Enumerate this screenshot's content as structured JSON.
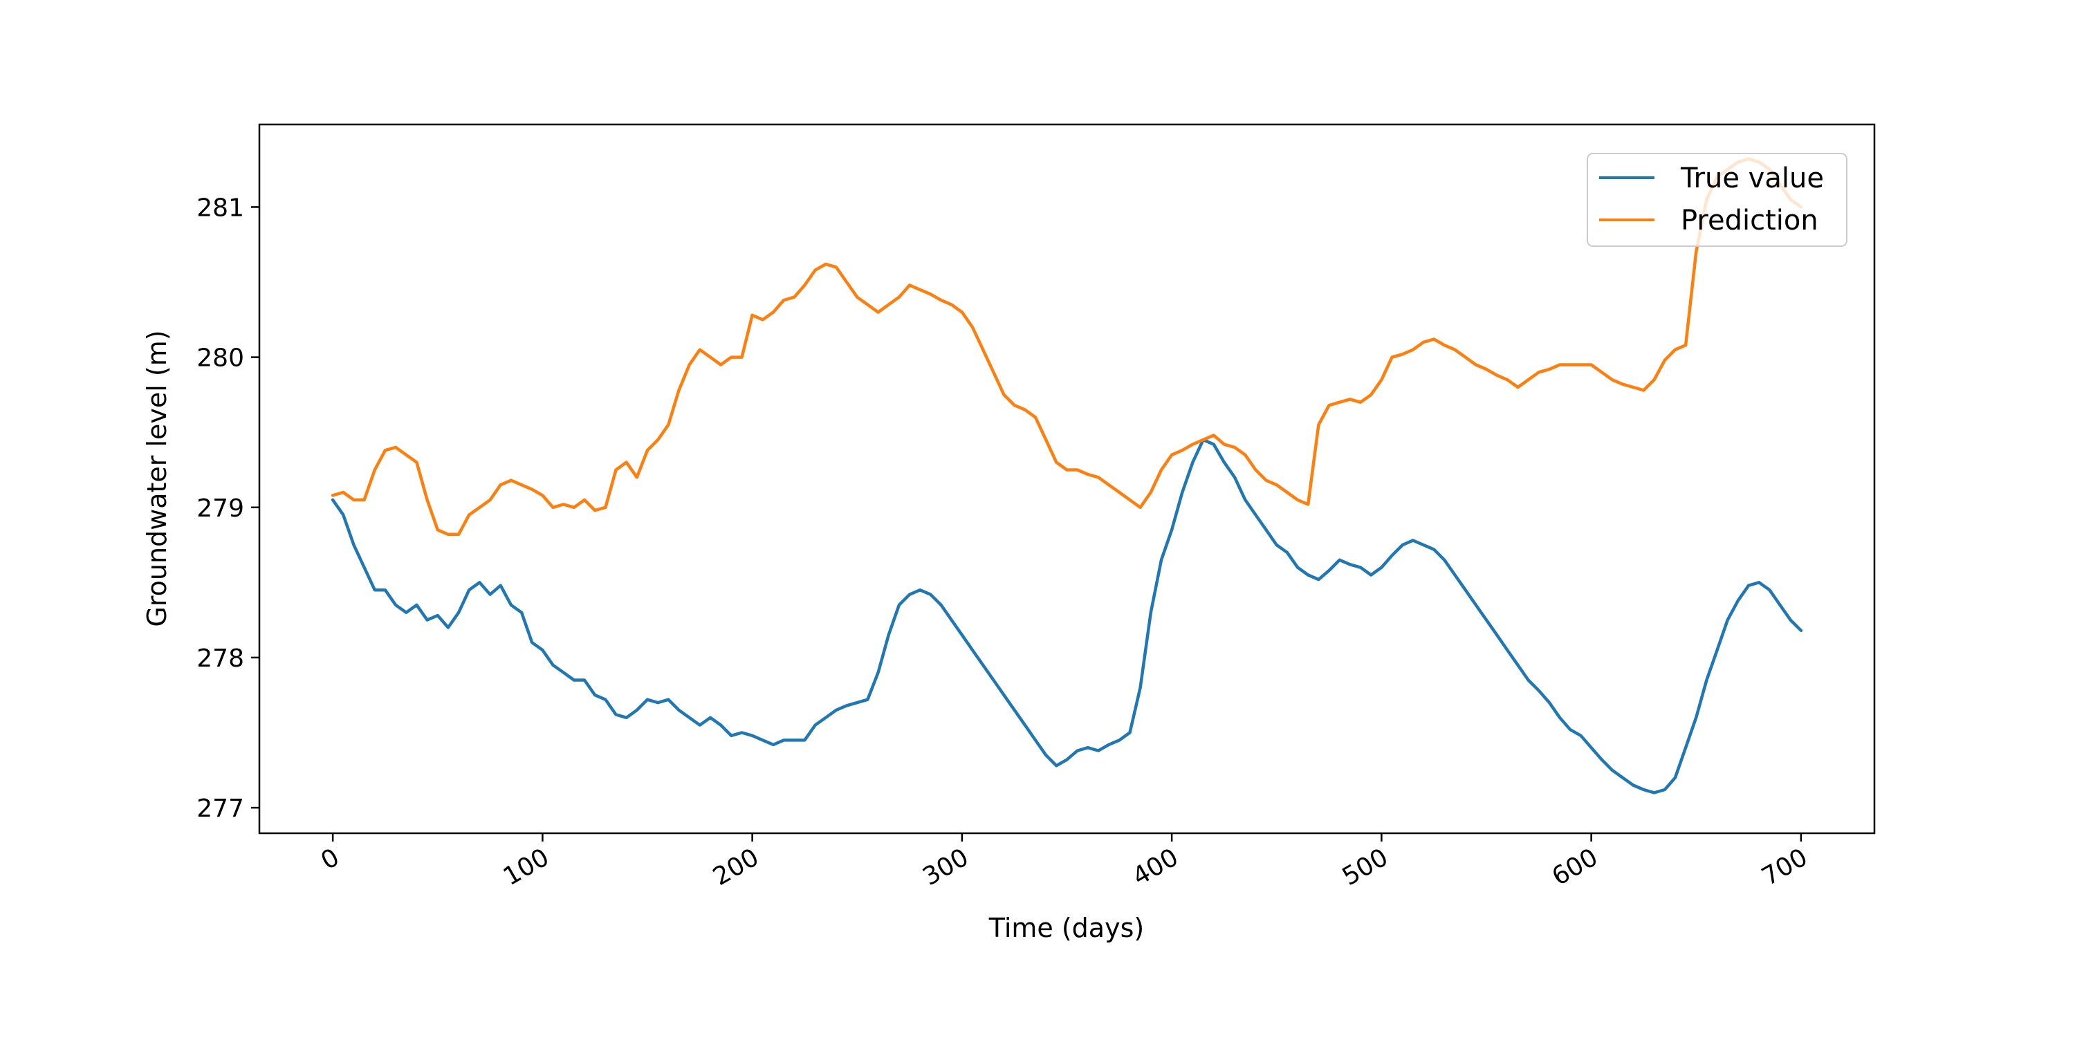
{
  "chart_data": {
    "type": "line",
    "title": "",
    "xlabel": "Time (days)",
    "ylabel": "Groundwater level (m)",
    "xlim": [
      -35,
      735
    ],
    "ylim": [
      276.83,
      281.55
    ],
    "x_ticks": [
      0,
      100,
      200,
      300,
      400,
      500,
      600,
      700
    ],
    "x_tick_labels": [
      "0",
      "100",
      "200",
      "300",
      "400",
      "500",
      "600",
      "700"
    ],
    "y_ticks": [
      277,
      278,
      279,
      280,
      281
    ],
    "y_tick_labels": [
      "277",
      "278",
      "279",
      "280",
      "281"
    ],
    "grid": false,
    "legend_position": "upper right",
    "series": [
      {
        "name": "True value",
        "color": "#1f77b4",
        "points": [
          [
            0,
            279.05
          ],
          [
            5,
            278.95
          ],
          [
            10,
            278.75
          ],
          [
            15,
            278.6
          ],
          [
            20,
            278.45
          ],
          [
            25,
            278.45
          ],
          [
            30,
            278.35
          ],
          [
            35,
            278.3
          ],
          [
            40,
            278.35
          ],
          [
            45,
            278.25
          ],
          [
            50,
            278.28
          ],
          [
            55,
            278.2
          ],
          [
            60,
            278.3
          ],
          [
            65,
            278.45
          ],
          [
            70,
            278.5
          ],
          [
            75,
            278.42
          ],
          [
            80,
            278.48
          ],
          [
            85,
            278.35
          ],
          [
            90,
            278.3
          ],
          [
            95,
            278.1
          ],
          [
            100,
            278.05
          ],
          [
            105,
            277.95
          ],
          [
            110,
            277.9
          ],
          [
            115,
            277.85
          ],
          [
            120,
            277.85
          ],
          [
            125,
            277.75
          ],
          [
            130,
            277.72
          ],
          [
            135,
            277.62
          ],
          [
            140,
            277.6
          ],
          [
            145,
            277.65
          ],
          [
            150,
            277.72
          ],
          [
            155,
            277.7
          ],
          [
            160,
            277.72
          ],
          [
            165,
            277.65
          ],
          [
            170,
            277.6
          ],
          [
            175,
            277.55
          ],
          [
            180,
            277.6
          ],
          [
            185,
            277.55
          ],
          [
            190,
            277.48
          ],
          [
            195,
            277.5
          ],
          [
            200,
            277.48
          ],
          [
            205,
            277.45
          ],
          [
            210,
            277.42
          ],
          [
            215,
            277.45
          ],
          [
            220,
            277.45
          ],
          [
            225,
            277.45
          ],
          [
            230,
            277.55
          ],
          [
            235,
            277.6
          ],
          [
            240,
            277.65
          ],
          [
            245,
            277.68
          ],
          [
            250,
            277.7
          ],
          [
            255,
            277.72
          ],
          [
            260,
            277.9
          ],
          [
            265,
            278.15
          ],
          [
            270,
            278.35
          ],
          [
            275,
            278.42
          ],
          [
            280,
            278.45
          ],
          [
            285,
            278.42
          ],
          [
            290,
            278.35
          ],
          [
            295,
            278.25
          ],
          [
            300,
            278.15
          ],
          [
            305,
            278.05
          ],
          [
            310,
            277.95
          ],
          [
            315,
            277.85
          ],
          [
            320,
            277.75
          ],
          [
            325,
            277.65
          ],
          [
            330,
            277.55
          ],
          [
            335,
            277.45
          ],
          [
            340,
            277.35
          ],
          [
            345,
            277.28
          ],
          [
            350,
            277.32
          ],
          [
            355,
            277.38
          ],
          [
            360,
            277.4
          ],
          [
            365,
            277.38
          ],
          [
            370,
            277.42
          ],
          [
            375,
            277.45
          ],
          [
            380,
            277.5
          ],
          [
            385,
            277.8
          ],
          [
            390,
            278.3
          ],
          [
            395,
            278.65
          ],
          [
            400,
            278.85
          ],
          [
            405,
            279.1
          ],
          [
            410,
            279.3
          ],
          [
            415,
            279.45
          ],
          [
            420,
            279.42
          ],
          [
            425,
            279.3
          ],
          [
            430,
            279.2
          ],
          [
            435,
            279.05
          ],
          [
            440,
            278.95
          ],
          [
            445,
            278.85
          ],
          [
            450,
            278.75
          ],
          [
            455,
            278.7
          ],
          [
            460,
            278.6
          ],
          [
            465,
            278.55
          ],
          [
            470,
            278.52
          ],
          [
            475,
            278.58
          ],
          [
            480,
            278.65
          ],
          [
            485,
            278.62
          ],
          [
            490,
            278.6
          ],
          [
            495,
            278.55
          ],
          [
            500,
            278.6
          ],
          [
            505,
            278.68
          ],
          [
            510,
            278.75
          ],
          [
            515,
            278.78
          ],
          [
            520,
            278.75
          ],
          [
            525,
            278.72
          ],
          [
            530,
            278.65
          ],
          [
            535,
            278.55
          ],
          [
            540,
            278.45
          ],
          [
            545,
            278.35
          ],
          [
            550,
            278.25
          ],
          [
            555,
            278.15
          ],
          [
            560,
            278.05
          ],
          [
            565,
            277.95
          ],
          [
            570,
            277.85
          ],
          [
            575,
            277.78
          ],
          [
            580,
            277.7
          ],
          [
            585,
            277.6
          ],
          [
            590,
            277.52
          ],
          [
            595,
            277.48
          ],
          [
            600,
            277.4
          ],
          [
            605,
            277.32
          ],
          [
            610,
            277.25
          ],
          [
            615,
            277.2
          ],
          [
            620,
            277.15
          ],
          [
            625,
            277.12
          ],
          [
            630,
            277.1
          ],
          [
            635,
            277.12
          ],
          [
            640,
            277.2
          ],
          [
            645,
            277.4
          ],
          [
            650,
            277.6
          ],
          [
            655,
            277.85
          ],
          [
            660,
            278.05
          ],
          [
            665,
            278.25
          ],
          [
            670,
            278.38
          ],
          [
            675,
            278.48
          ],
          [
            680,
            278.5
          ],
          [
            685,
            278.45
          ],
          [
            690,
            278.35
          ],
          [
            695,
            278.25
          ],
          [
            700,
            278.18
          ]
        ]
      },
      {
        "name": "Prediction",
        "color": "#ff7f0e",
        "points": [
          [
            0,
            279.08
          ],
          [
            5,
            279.1
          ],
          [
            10,
            279.05
          ],
          [
            15,
            279.05
          ],
          [
            20,
            279.25
          ],
          [
            25,
            279.38
          ],
          [
            30,
            279.4
          ],
          [
            35,
            279.35
          ],
          [
            40,
            279.3
          ],
          [
            45,
            279.05
          ],
          [
            50,
            278.85
          ],
          [
            55,
            278.82
          ],
          [
            60,
            278.82
          ],
          [
            65,
            278.95
          ],
          [
            70,
            279.0
          ],
          [
            75,
            279.05
          ],
          [
            80,
            279.15
          ],
          [
            85,
            279.18
          ],
          [
            90,
            279.15
          ],
          [
            95,
            279.12
          ],
          [
            100,
            279.08
          ],
          [
            105,
            279.0
          ],
          [
            110,
            279.02
          ],
          [
            115,
            279.0
          ],
          [
            120,
            279.05
          ],
          [
            125,
            278.98
          ],
          [
            130,
            279.0
          ],
          [
            135,
            279.25
          ],
          [
            140,
            279.3
          ],
          [
            145,
            279.2
          ],
          [
            150,
            279.38
          ],
          [
            155,
            279.45
          ],
          [
            160,
            279.55
          ],
          [
            165,
            279.78
          ],
          [
            170,
            279.95
          ],
          [
            175,
            280.05
          ],
          [
            180,
            280.0
          ],
          [
            185,
            279.95
          ],
          [
            190,
            280.0
          ],
          [
            195,
            280.0
          ],
          [
            200,
            280.28
          ],
          [
            205,
            280.25
          ],
          [
            210,
            280.3
          ],
          [
            215,
            280.38
          ],
          [
            220,
            280.4
          ],
          [
            225,
            280.48
          ],
          [
            230,
            280.58
          ],
          [
            235,
            280.62
          ],
          [
            240,
            280.6
          ],
          [
            245,
            280.5
          ],
          [
            250,
            280.4
          ],
          [
            255,
            280.35
          ],
          [
            260,
            280.3
          ],
          [
            265,
            280.35
          ],
          [
            270,
            280.4
          ],
          [
            275,
            280.48
          ],
          [
            280,
            280.45
          ],
          [
            285,
            280.42
          ],
          [
            290,
            280.38
          ],
          [
            295,
            280.35
          ],
          [
            300,
            280.3
          ],
          [
            305,
            280.2
          ],
          [
            310,
            280.05
          ],
          [
            315,
            279.9
          ],
          [
            320,
            279.75
          ],
          [
            325,
            279.68
          ],
          [
            330,
            279.65
          ],
          [
            335,
            279.6
          ],
          [
            340,
            279.45
          ],
          [
            345,
            279.3
          ],
          [
            350,
            279.25
          ],
          [
            355,
            279.25
          ],
          [
            360,
            279.22
          ],
          [
            365,
            279.2
          ],
          [
            370,
            279.15
          ],
          [
            375,
            279.1
          ],
          [
            380,
            279.05
          ],
          [
            385,
            279.0
          ],
          [
            390,
            279.1
          ],
          [
            395,
            279.25
          ],
          [
            400,
            279.35
          ],
          [
            405,
            279.38
          ],
          [
            410,
            279.42
          ],
          [
            415,
            279.45
          ],
          [
            420,
            279.48
          ],
          [
            425,
            279.42
          ],
          [
            430,
            279.4
          ],
          [
            435,
            279.35
          ],
          [
            440,
            279.25
          ],
          [
            445,
            279.18
          ],
          [
            450,
            279.15
          ],
          [
            455,
            279.1
          ],
          [
            460,
            279.05
          ],
          [
            465,
            279.02
          ],
          [
            470,
            279.55
          ],
          [
            475,
            279.68
          ],
          [
            480,
            279.7
          ],
          [
            485,
            279.72
          ],
          [
            490,
            279.7
          ],
          [
            495,
            279.75
          ],
          [
            500,
            279.85
          ],
          [
            505,
            280.0
          ],
          [
            510,
            280.02
          ],
          [
            515,
            280.05
          ],
          [
            520,
            280.1
          ],
          [
            525,
            280.12
          ],
          [
            530,
            280.08
          ],
          [
            535,
            280.05
          ],
          [
            540,
            280.0
          ],
          [
            545,
            279.95
          ],
          [
            550,
            279.92
          ],
          [
            555,
            279.88
          ],
          [
            560,
            279.85
          ],
          [
            565,
            279.8
          ],
          [
            570,
            279.85
          ],
          [
            575,
            279.9
          ],
          [
            580,
            279.92
          ],
          [
            585,
            279.95
          ],
          [
            590,
            279.95
          ],
          [
            595,
            279.95
          ],
          [
            600,
            279.95
          ],
          [
            605,
            279.9
          ],
          [
            610,
            279.85
          ],
          [
            615,
            279.82
          ],
          [
            620,
            279.8
          ],
          [
            625,
            279.78
          ],
          [
            630,
            279.85
          ],
          [
            635,
            279.98
          ],
          [
            640,
            280.05
          ],
          [
            645,
            280.08
          ],
          [
            650,
            280.7
          ],
          [
            655,
            281.05
          ],
          [
            660,
            281.2
          ],
          [
            665,
            281.25
          ],
          [
            670,
            281.3
          ],
          [
            675,
            281.32
          ],
          [
            680,
            281.3
          ],
          [
            685,
            281.25
          ],
          [
            690,
            281.15
          ],
          [
            695,
            281.05
          ],
          [
            700,
            281.0
          ]
        ]
      }
    ]
  }
}
